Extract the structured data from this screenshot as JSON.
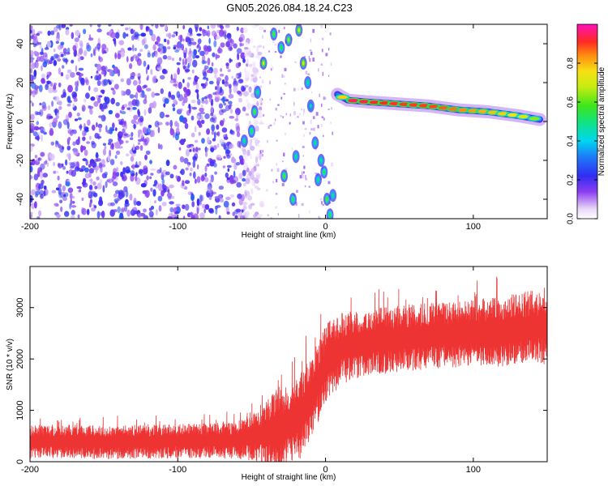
{
  "title": "GN05.2026.084.18.24.C23",
  "chart_data": [
    {
      "type": "heatmap",
      "xlabel": "Height of straight line (km)",
      "ylabel": "Frequency (Hz)",
      "xlim": [
        -200,
        150
      ],
      "ylim": [
        -50,
        50
      ],
      "xticks": [
        "-200",
        "-100",
        "0",
        "100"
      ],
      "xtick_values": [
        -200,
        -100,
        0,
        100
      ],
      "yticks": [
        "-40",
        "-20",
        "0",
        "20",
        "40"
      ],
      "ytick_values": [
        -40,
        -20,
        0,
        20,
        40
      ],
      "colorbar": {
        "label": "Normalized spectral amplitude",
        "range": [
          0,
          1
        ],
        "ticks": [
          "0.0",
          "0.2",
          "0.4",
          "0.6",
          "0.8"
        ],
        "tick_values": [
          0.0,
          0.2,
          0.4,
          0.6,
          0.8
        ]
      },
      "noise_region_km": [
        -200,
        -55
      ],
      "vertical_streak_points": [
        {
          "x": -55,
          "f": -10,
          "a": 0.5
        },
        {
          "x": -50,
          "f": -5,
          "a": 0.55
        },
        {
          "x": -48,
          "f": 5,
          "a": 0.6
        },
        {
          "x": -46,
          "f": 15,
          "a": 0.5
        },
        {
          "x": -42,
          "f": 30,
          "a": 0.7
        },
        {
          "x": -35,
          "f": 45,
          "a": 0.6
        },
        {
          "x": -30,
          "f": 38,
          "a": 0.55
        },
        {
          "x": -28,
          "f": -28,
          "a": 0.6
        },
        {
          "x": -25,
          "f": 42,
          "a": 0.65
        },
        {
          "x": -22,
          "f": -40,
          "a": 0.55
        },
        {
          "x": -20,
          "f": -18,
          "a": 0.5
        },
        {
          "x": -18,
          "f": 47,
          "a": 0.7
        },
        {
          "x": -15,
          "f": 30,
          "a": 0.75
        },
        {
          "x": -12,
          "f": 20,
          "a": 0.5
        },
        {
          "x": -10,
          "f": 8,
          "a": 0.45
        },
        {
          "x": -7,
          "f": -11,
          "a": 0.5
        },
        {
          "x": -5,
          "f": -30,
          "a": 0.5
        },
        {
          "x": -3,
          "f": -20,
          "a": 0.5
        },
        {
          "x": -1,
          "f": -26,
          "a": 0.55
        },
        {
          "x": 1,
          "f": -40,
          "a": 0.6
        },
        {
          "x": 3,
          "f": -48,
          "a": 0.55
        },
        {
          "x": 5,
          "f": -38,
          "a": 0.5
        }
      ],
      "carrier_line": {
        "x": [
          8,
          15,
          30,
          50,
          70,
          90,
          110,
          130,
          145
        ],
        "f": [
          14,
          11,
          10,
          9,
          8,
          6,
          5,
          3,
          1
        ],
        "peak_amplitude": [
          0.6,
          0.95,
          0.92,
          0.9,
          0.9,
          0.85,
          0.8,
          0.75,
          0.6
        ]
      }
    },
    {
      "type": "line",
      "xlabel": "Height of straight line (km)",
      "ylabel": "SNR (10 * v/v)",
      "xlim": [
        -200,
        150
      ],
      "ylim": [
        0,
        3800
      ],
      "xticks": [
        "-200",
        "-100",
        "0",
        "100"
      ],
      "xtick_values": [
        -200,
        -100,
        0,
        100
      ],
      "yticks": [
        "0",
        "1000",
        "2000",
        "3000"
      ],
      "ytick_values": [
        0,
        1000,
        2000,
        3000
      ],
      "color": "#ee3333",
      "series": [
        {
          "name": "SNR",
          "x": [
            -200,
            -150,
            -100,
            -60,
            -45,
            -38,
            -32,
            -28,
            -20,
            -15,
            -10,
            -5,
            0,
            10,
            25,
            50,
            75,
            100,
            125,
            150
          ],
          "mean": [
            400,
            380,
            400,
            420,
            500,
            550,
            600,
            650,
            800,
            1000,
            1200,
            1550,
            1900,
            2200,
            2300,
            2400,
            2450,
            2500,
            2550,
            2650
          ],
          "spread": [
            330,
            330,
            330,
            360,
            500,
            700,
            900,
            700,
            800,
            900,
            800,
            800,
            800,
            700,
            650,
            650,
            650,
            650,
            700,
            750
          ]
        }
      ]
    }
  ]
}
